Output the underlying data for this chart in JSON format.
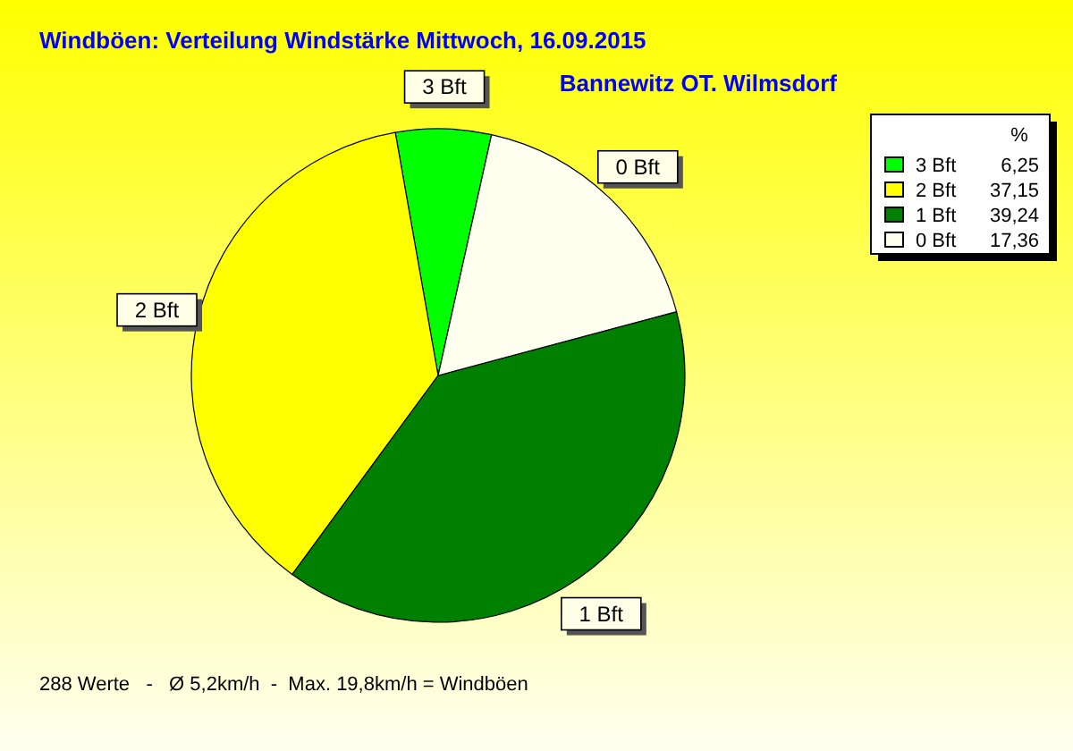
{
  "chart_data": {
    "type": "pie",
    "title": "Windböen: Verteilung Windstärke  Mittwoch, 16.09.2015",
    "subtitle": "Bannewitz OT. Wilmsdorf",
    "categories": [
      "3 Bft",
      "2 Bft",
      "1 Bft",
      "0 Bft"
    ],
    "values": [
      6.25,
      37.15,
      39.24,
      17.36
    ],
    "value_labels": [
      "6,25",
      "37,15",
      "39,24",
      "17,36"
    ],
    "colors": [
      "#00ff00",
      "#ffff00",
      "#008000",
      "#fffff0"
    ],
    "legend": "top right",
    "legend_title": "%",
    "annotations": [
      "288 Werte   -   Ø 5,2km/h  -  Max. 19,8km/h = Windböen"
    ]
  }
}
